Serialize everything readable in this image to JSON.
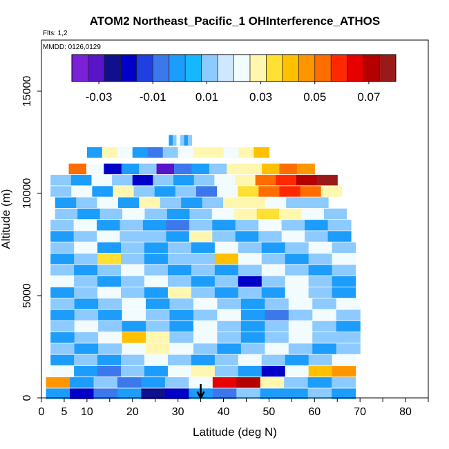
{
  "chart_data": {
    "type": "heatmap",
    "title": "ATOM2 Northeast_Pacific_1 OHInterference_ATHOS",
    "flights_note": "Flts: 1,2",
    "dates_note": "MMDD: 0126,0129",
    "xlabel": "Latitude (deg N)",
    "ylabel": "Altitude (m)",
    "xlim": [
      0,
      85
    ],
    "ylim": [
      0,
      17500
    ],
    "x_ticks": [
      0,
      5,
      10,
      20,
      30,
      40,
      50,
      60,
      70,
      80
    ],
    "x_minor_ticks": [
      15,
      25,
      35,
      45,
      55,
      65,
      75,
      85
    ],
    "y_ticks": [
      0,
      5000,
      10000,
      15000
    ],
    "colorbar": {
      "min": -0.04,
      "max": 0.08,
      "ticks": [
        "-0.03",
        "-0.01",
        "0.01",
        "0.03",
        "0.05",
        "0.07"
      ],
      "tick_values": [
        -0.03,
        -0.01,
        0.01,
        0.03,
        0.05,
        0.07
      ],
      "colors": [
        "#7b22d8",
        "#5a14c8",
        "#10108f",
        "#0000c8",
        "#1f3fe0",
        "#3c78ec",
        "#1c9cfb",
        "#15b8ff",
        "#8ccaff",
        "#cfe8ff",
        "#f2fbfd",
        "#fff7b0",
        "#ffe033",
        "#ffc000",
        "#ff9600",
        "#ff6c00",
        "#ff2800",
        "#e60000",
        "#b40000",
        "#9a1a1a"
      ]
    },
    "marker": {
      "latitude": 35,
      "label": "arrow"
    },
    "bands": [
      {
        "alt": 12600,
        "lat": [
          28,
          33
        ],
        "values": [
          0.0,
          0.01,
          0.02,
          0.01,
          0.0,
          0.01
        ]
      },
      {
        "alt": 12000,
        "lat": [
          10,
          50
        ],
        "values": [
          0.0,
          0.03,
          0.02,
          0.0,
          -0.01,
          0.01,
          0.02,
          0.03,
          0.03,
          0.02,
          0.03,
          0.04
        ]
      },
      {
        "alt": 11200,
        "lat": [
          6,
          60
        ],
        "values": [
          0.05,
          0.02,
          -0.02,
          0.0,
          0.01,
          -0.03,
          -0.01,
          0.0,
          0.01,
          0.03,
          0.03,
          0.04,
          0.05,
          0.045
        ]
      },
      {
        "alt": 10650,
        "lat": [
          2,
          65
        ],
        "values": [
          0.01,
          0.0,
          0.02,
          0.01,
          -0.02,
          0.01,
          0.0,
          0.01,
          0.02,
          0.03,
          0.05,
          0.06,
          0.07,
          0.075
        ]
      },
      {
        "alt": 10100,
        "lat": [
          2,
          66
        ],
        "values": [
          0.01,
          0.02,
          0.0,
          0.03,
          0.01,
          0.0,
          0.01,
          -0.01,
          0.02,
          0.035,
          0.05,
          0.06,
          0.05,
          0.03
        ]
      },
      {
        "alt": 9550,
        "lat": [
          3,
          63
        ],
        "values": [
          0.0,
          0.01,
          0.02,
          0.0,
          0.03,
          0.01,
          0.0,
          0.01,
          0.03,
          0.03,
          0.02,
          0.01,
          0.01
        ]
      },
      {
        "alt": 9000,
        "lat": [
          3,
          67
        ],
        "values": [
          0.01,
          0.0,
          0.01,
          0.02,
          0.01,
          0.0,
          0.01,
          0.02,
          0.03,
          0.035,
          0.03,
          0.02,
          0.01
        ]
      },
      {
        "alt": 8450,
        "lat": [
          2,
          68
        ],
        "values": [
          0.01,
          0.02,
          0.0,
          0.01,
          0.0,
          -0.01,
          0.01,
          0.0,
          0.01,
          0.02,
          0.01,
          0.0,
          0.01
        ]
      },
      {
        "alt": 7900,
        "lat": [
          2,
          68
        ],
        "values": [
          0.0,
          0.01,
          0.02,
          0.01,
          0.01,
          0.0,
          0.03,
          0.01,
          0.0,
          0.01,
          0.02,
          0.01,
          0.0
        ]
      },
      {
        "alt": 7350,
        "lat": [
          2,
          69
        ],
        "values": [
          0.01,
          0.02,
          0.0,
          0.01,
          0.0,
          0.01,
          0.0,
          0.02,
          0.01,
          0.0,
          0.01,
          0.02,
          0.01
        ]
      },
      {
        "alt": 6800,
        "lat": [
          2,
          69
        ],
        "values": [
          0.0,
          0.01,
          0.035,
          0.01,
          0.0,
          0.01,
          0.01,
          0.04,
          0.02,
          0.01,
          0.0,
          0.01,
          0.02
        ]
      },
      {
        "alt": 6250,
        "lat": [
          2,
          69
        ],
        "values": [
          0.01,
          0.0,
          0.01,
          0.02,
          0.01,
          0.0,
          0.01,
          0.0,
          0.01,
          0.02,
          0.01,
          0.0,
          0.01
        ]
      },
      {
        "alt": 5700,
        "lat": [
          2,
          69
        ],
        "values": [
          0.02,
          0.01,
          0.0,
          0.01,
          0.02,
          0.01,
          0.0,
          0.01,
          -0.02,
          0.01,
          0.02,
          0.01,
          0.0
        ]
      },
      {
        "alt": 5150,
        "lat": [
          2,
          69
        ],
        "values": [
          0.0,
          0.01,
          0.02,
          0.01,
          0.0,
          0.03,
          0.01,
          0.0,
          0.01,
          0.0,
          0.02,
          0.01,
          0.0
        ]
      },
      {
        "alt": 4600,
        "lat": [
          2,
          70
        ],
        "values": [
          0.01,
          0.0,
          0.01,
          0.02,
          0.0,
          0.01,
          0.02,
          0.01,
          0.0,
          0.01,
          0.02,
          0.01,
          0.02
        ]
      },
      {
        "alt": 4050,
        "lat": [
          2,
          70
        ],
        "values": [
          0.0,
          0.01,
          0.0,
          0.02,
          0.01,
          0.0,
          0.01,
          0.02,
          0.0,
          -0.01,
          0.01,
          0.02,
          0.01
        ]
      },
      {
        "alt": 3500,
        "lat": [
          2,
          70
        ],
        "values": [
          0.01,
          0.02,
          0.01,
          0.0,
          0.01,
          0.0,
          0.02,
          0.01,
          0.0,
          0.01,
          0.02,
          0.01,
          0.0
        ]
      },
      {
        "alt": 2950,
        "lat": [
          2,
          70
        ],
        "values": [
          0.0,
          0.01,
          0.02,
          0.04,
          0.03,
          0.01,
          0.02,
          0.01,
          0.0,
          0.01,
          0.02,
          0.01,
          0.01
        ]
      },
      {
        "alt": 2400,
        "lat": [
          2,
          70
        ],
        "values": [
          0.01,
          0.0,
          0.01,
          0.02,
          0.03,
          0.02,
          0.01,
          0.0,
          0.01,
          0.02,
          0.01,
          0.0,
          0.01
        ]
      },
      {
        "alt": 1850,
        "lat": [
          2,
          69
        ],
        "values": [
          0.0,
          0.01,
          0.0,
          0.01,
          0.02,
          0.01,
          0.0,
          0.01,
          0.02,
          0.01,
          0.0,
          0.01,
          0.02
        ]
      },
      {
        "alt": 1300,
        "lat": [
          2,
          69
        ],
        "values": [
          0.02,
          0.0,
          -0.01,
          0.01,
          0.0,
          0.02,
          0.03,
          0.01,
          0.0,
          -0.02,
          0.02,
          0.04,
          0.045
        ]
      },
      {
        "alt": 750,
        "lat": [
          1,
          69
        ],
        "values": [
          0.045,
          0.0,
          0.01,
          -0.01,
          0.0,
          0.01,
          0.02,
          0.065,
          0.07,
          0.03,
          0.01,
          0.0,
          0.01
        ]
      },
      {
        "alt": 200,
        "lat": [
          1,
          69
        ],
        "values": [
          0.0,
          -0.02,
          -0.01,
          0.0,
          -0.025,
          -0.02,
          0.0,
          -0.01,
          0.01,
          0.0,
          0.0,
          0.01,
          0.0
        ]
      }
    ]
  }
}
